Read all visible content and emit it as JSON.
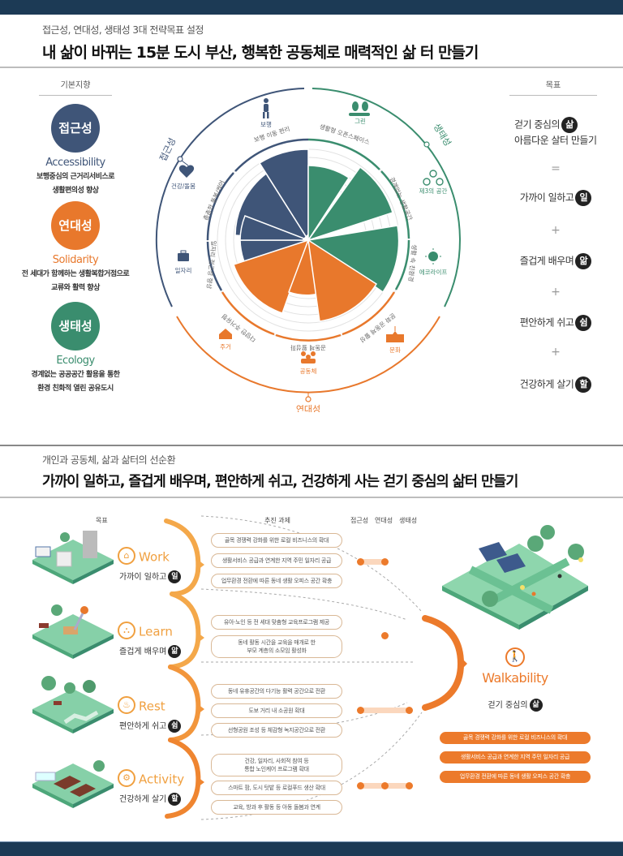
{
  "section1": {
    "subtitle": "접근성, 연대성, 생태성 3대 전략목표 설정",
    "title": "내 삶이 바뀌는 15분 도시 부산, 행복한 공동체로 매력적인 삶 터 만들기",
    "left_header": "기본지향",
    "right_header": "목표",
    "principles": [
      {
        "name": "접근성",
        "en": "Accessibility",
        "desc1": "보행중심의 근거리서비스로",
        "desc2": "생활편의성 향상",
        "color": "#3f5578"
      },
      {
        "name": "연대성",
        "en": "Solidarity",
        "desc1": "전 세대가 함께하는 생활복합거점으로",
        "desc2": "교류와 활력 향상",
        "color": "#e8782c"
      },
      {
        "name": "생태성",
        "en": "Ecology",
        "desc1": "경계없는 공공공간 활용을 통한",
        "desc2": "환경 친화적 열린 공유도시",
        "color": "#3a8d6e"
      }
    ],
    "radial": {
      "outer_labels": {
        "accessibility": "접근성",
        "ecology": "생태성",
        "solidarity": "연대성"
      },
      "categories": [
        {
          "icon": "walking-person-icon",
          "label": "보행",
          "inner": "보행 이동 편리",
          "group": "accessibility"
        },
        {
          "icon": "heart-pulse-icon",
          "label": "건강/돌봄",
          "inner": "촘촘한 돌봄/케어",
          "group": "accessibility"
        },
        {
          "icon": "briefcase-icon",
          "label": "일자리",
          "inner": "일자리 접근성 향상",
          "group": "accessibility"
        },
        {
          "icon": "trees-icon",
          "label": "그린",
          "inner": "생활형 오픈스페이스",
          "group": "ecology"
        },
        {
          "icon": "people-network-icon",
          "label": "제3의 공간",
          "inner": "경계없는 생활공간",
          "group": "ecology"
        },
        {
          "icon": "sun-icon",
          "label": "에코라이프",
          "inner": "생활 속 친환경",
          "group": "ecology"
        },
        {
          "icon": "house-icon",
          "label": "주거",
          "inner": "다양한 주거유형",
          "group": "solidarity"
        },
        {
          "icon": "community-icon",
          "label": "공동체",
          "inner": "공동체 활성화",
          "group": "solidarity"
        },
        {
          "icon": "school-icon",
          "label": "문화",
          "inner": "문화 공동체 활성",
          "group": "solidarity"
        }
      ],
      "colors": {
        "accessibility": "#3f5578",
        "ecology": "#3a8d6e",
        "solidarity": "#e8782c"
      }
    },
    "goals": [
      {
        "line1": "걷기 중심의",
        "badge": "삶",
        "line2": "아름다운 살터 만들기"
      },
      {
        "op": "="
      },
      {
        "line1": "가까이 일하고",
        "badge": "일"
      },
      {
        "op": "+"
      },
      {
        "line1": "즐겁게 배우며",
        "badge": "앎"
      },
      {
        "op": "+"
      },
      {
        "line1": "편안하게 쉬고",
        "badge": "쉼"
      },
      {
        "op": "+"
      },
      {
        "line1": "건강하게 살기",
        "badge": "할"
      }
    ]
  },
  "section2": {
    "subtitle": "개인과 공동체, 삶과 삶터의 선순환",
    "title": "가까이 일하고, 즐겁게 배우며, 편안하게 쉬고, 건강하게 사는 걷기 중심의 삶터 만들기",
    "col_goal": "목표",
    "col_tasks": "추진 과제",
    "col_acc": "접근성",
    "col_sol": "연대성",
    "col_eco": "생태성",
    "goals": [
      {
        "name": "Work",
        "icon": "shop-icon",
        "sub": "가까이 일하고",
        "badge": "일",
        "tasks": [
          "골목 경쟁력 강화를 위한 로컬 비즈니스의 확대",
          "생활서비스 공급과 연계한 지역 주민 일자리 공급",
          "업무환경 전환에 따른 동네 생활 오피스 공간 확충"
        ]
      },
      {
        "name": "Learn",
        "icon": "playground-icon",
        "sub": "즐겁게 배우며",
        "badge": "앎",
        "tasks": [
          "유아·노인 등 전 세대 맞춤형 교육프로그램 제공",
          "동네 활동 시간을 교육을 매개로 한|부모 계층의 소모임 활성화"
        ]
      },
      {
        "name": "Rest",
        "icon": "bench-icon",
        "sub": "편안하게 쉬고",
        "badge": "쉼",
        "tasks": [
          "동네 유휴공간의 다기능 활력 공간으로 전환",
          "도보 거리 내 소공원 확대",
          "선형공원 조성 등 체감형 녹지공간으로 전환"
        ]
      },
      {
        "name": "Activity",
        "icon": "gear-icon",
        "sub": "건강하게 살기",
        "badge": "할",
        "tasks": [
          "건강, 일자리, 사회적 참여 등|통합 노인케어 프로그램 확대",
          "스마트 팜, 도시 텃밭 등 로컬푸드 생산 확대",
          "교육, 방과 후 활동 등 아동 돌봄과 연계"
        ]
      }
    ],
    "walkability": {
      "title": "Walkability",
      "sub": "걷기 중심의",
      "badge": "삶",
      "tasks": [
        "골목 경쟁력 강화를 위한 로컬 비즈니스의 확대",
        "생활서비스 공급과 연계한 지역 주민 일자리 공급",
        "업무환경 전환에 따른 동네 생활 오피스 공간 확충"
      ]
    },
    "accent": "#ec7a2b"
  }
}
